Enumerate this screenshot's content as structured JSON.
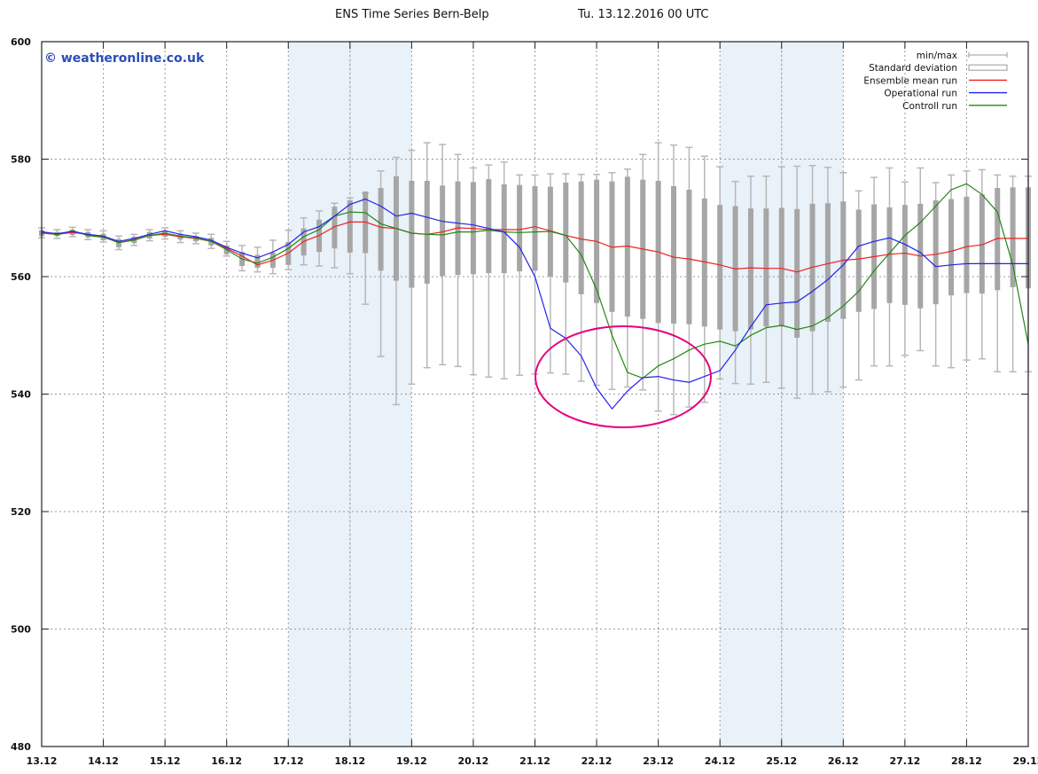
{
  "chart_data": {
    "type": "line",
    "title": "ENS Time Series Bern-Belp",
    "run_label": "Tu. 13.12.2016 00 UTC",
    "copyright": "© weatheronline.co.uk",
    "xlabel": "",
    "ylabel": "",
    "ylim": [
      480,
      600
    ],
    "yticks": [
      "480",
      "500",
      "520",
      "540",
      "560",
      "580",
      "600"
    ],
    "ytick_values": [
      480,
      500,
      520,
      540,
      560,
      580,
      600
    ],
    "xticks": [
      "13.12",
      "14.12",
      "15.12",
      "16.12",
      "17.12",
      "18.12",
      "19.12",
      "20.12",
      "21.12",
      "22.12",
      "23.12",
      "24.12",
      "25.12",
      "26.12",
      "27.12",
      "28.12",
      "29.12"
    ],
    "x_unit": "days since 13.12 00 UTC",
    "xlim": [
      0,
      16
    ],
    "grid": true,
    "legend_position": "top-right",
    "shaded_periods_days": [
      [
        4,
        6
      ],
      [
        11,
        13
      ]
    ],
    "legend": [
      {
        "label": "min/max",
        "kind": "whisker"
      },
      {
        "label": "Standard deviation",
        "kind": "box"
      },
      {
        "label": "Ensemble mean run",
        "kind": "line",
        "color": "#ee2222"
      },
      {
        "label": "Operational run",
        "kind": "line",
        "color": "#2222ee"
      },
      {
        "label": "Controll run",
        "kind": "line",
        "color": "#228811"
      }
    ],
    "colors": {
      "mean": "#ee2222",
      "operational": "#2222ee",
      "control": "#228811",
      "box": "#a6a6a6",
      "whisker": "#b8b8b8",
      "shade": "#e9f1f9",
      "ellipse": "#e6007e",
      "copyright": "#2a4db8"
    },
    "annotation": {
      "type": "ellipse",
      "center_x_days": 22.6,
      "center_y": 542.5
    },
    "x": [
      0,
      0.25,
      0.5,
      0.75,
      1,
      1.25,
      1.5,
      1.75,
      2,
      2.25,
      2.5,
      2.75,
      3,
      3.25,
      3.5,
      3.75,
      4,
      4.25,
      4.5,
      4.75,
      5,
      5.25,
      5.5,
      5.75,
      6,
      6.25,
      6.5,
      6.75,
      7,
      7.25,
      7.5,
      7.75,
      8,
      8.25,
      8.5,
      8.75,
      9,
      9.25,
      9.5,
      9.75,
      10,
      10.25,
      10.5,
      10.75,
      11,
      11.25,
      11.5,
      11.75,
      12,
      12.25,
      12.5,
      12.75,
      13,
      13.25,
      13.5,
      13.75,
      14,
      14.25,
      14.5,
      14.75,
      15,
      15.25,
      15.5,
      15.75,
      16
    ],
    "series": [
      {
        "name": "Ensemble mean run",
        "values": [
          567.4,
          567.2,
          567.5,
          567.2,
          566.8,
          565.8,
          566.3,
          567.0,
          567.2,
          566.8,
          566.5,
          566.0,
          564.8,
          563.5,
          562.0,
          562.8,
          564.0,
          566.0,
          567.0,
          568.5,
          569.3,
          569.3,
          568.4,
          568.2,
          567.4,
          567.2,
          567.6,
          568.3,
          568.2,
          568.0,
          568.0,
          568.0,
          568.5,
          567.8,
          567.0,
          566.4,
          566.0,
          565.0,
          565.2,
          564.7,
          564.2,
          563.3,
          563.0,
          562.5,
          562.0,
          561.3,
          561.5,
          561.4,
          561.4,
          560.8,
          561.6,
          562.2,
          562.8,
          563.0,
          563.4,
          563.8,
          564.0,
          563.5,
          563.8,
          564.3,
          565.1,
          565.4,
          566.5,
          566.5,
          566.5
        ]
      },
      {
        "name": "Operational run",
        "values": [
          567.6,
          567.3,
          567.7,
          567.2,
          566.9,
          566.0,
          566.5,
          567.2,
          567.8,
          567.2,
          566.8,
          566.2,
          565.0,
          564.0,
          563.2,
          564.2,
          565.5,
          567.6,
          568.5,
          570.3,
          572.3,
          573.2,
          572.0,
          570.3,
          570.8,
          570.1,
          569.4,
          569.1,
          568.8,
          568.2,
          567.6,
          565.0,
          560.0,
          551.2,
          549.5,
          546.5,
          541.0,
          537.5,
          540.5,
          542.8,
          543.0,
          542.4,
          542.0,
          543.0,
          544.0,
          547.5,
          551.5,
          555.2,
          555.5,
          555.7,
          557.5,
          559.5,
          562.0,
          565.2,
          566.0,
          566.6,
          565.5,
          564.1,
          561.7,
          562.0,
          562.2,
          562.2,
          562.2,
          562.2,
          562.2
        ]
      },
      {
        "name": "Controll run",
        "values": [
          567.7,
          567.1,
          567.8,
          567.0,
          566.7,
          565.8,
          566.2,
          567.0,
          567.4,
          566.9,
          566.6,
          566.0,
          564.6,
          563.0,
          562.3,
          563.3,
          564.8,
          566.8,
          568.0,
          570.3,
          571.0,
          570.9,
          569.0,
          568.2,
          567.4,
          567.2,
          567.1,
          567.6,
          567.6,
          567.9,
          567.6,
          567.5,
          567.6,
          567.7,
          567.0,
          563.7,
          557.8,
          550.0,
          543.7,
          542.7,
          544.8,
          546.0,
          547.5,
          548.5,
          549.0,
          548.2,
          550.0,
          551.3,
          551.7,
          551.0,
          551.6,
          553.0,
          555.0,
          557.5,
          561.0,
          564.0,
          567.0,
          569.2,
          572.0,
          574.8,
          575.8,
          574.0,
          571.0,
          562.0,
          548.5
        ]
      },
      {
        "name": "Standard deviation (box low)",
        "values": [
          566.9,
          566.9,
          567.1,
          566.7,
          566.2,
          565.0,
          565.7,
          566.5,
          566.8,
          566.3,
          566.0,
          565.3,
          563.8,
          561.8,
          561.5,
          561.5,
          562.0,
          563.6,
          564.2,
          564.8,
          564.1,
          564.0,
          561.0,
          559.3,
          558.1,
          558.8,
          560.1,
          560.3,
          560.4,
          560.6,
          560.6,
          560.9,
          561.0,
          560.0,
          559.0,
          557.0,
          555.5,
          554.0,
          553.2,
          552.8,
          552.1,
          552.0,
          551.9,
          551.5,
          551.0,
          550.7,
          551.0,
          551.5,
          551.5,
          549.6,
          550.7,
          552.3,
          552.8,
          554.0,
          554.5,
          555.5,
          555.2,
          554.6,
          555.3,
          556.8,
          557.2,
          557.1,
          557.7,
          558.2,
          558.0
        ]
      },
      {
        "name": "Standard deviation (box high)",
        "values": [
          567.9,
          567.6,
          568.0,
          567.6,
          567.3,
          566.4,
          566.8,
          567.6,
          567.8,
          567.3,
          566.9,
          566.6,
          565.3,
          564.2,
          563.7,
          564.1,
          565.9,
          568.2,
          569.7,
          571.9,
          573.0,
          574.5,
          575.1,
          577.1,
          576.3,
          576.3,
          575.5,
          576.2,
          576.1,
          576.6,
          575.7,
          575.6,
          575.4,
          575.3,
          576.0,
          576.2,
          576.5,
          576.2,
          577.0,
          576.5,
          576.3,
          575.4,
          574.8,
          573.3,
          572.2,
          572.0,
          571.6,
          571.6,
          571.7,
          571.5,
          572.4,
          572.5,
          572.8,
          571.4,
          572.3,
          571.8,
          572.2,
          572.4,
          573.0,
          573.2,
          573.6,
          574.0,
          575.1,
          575.2,
          575.2
        ]
      },
      {
        "name": "min",
        "values": [
          566.6,
          566.5,
          566.8,
          566.3,
          565.9,
          564.6,
          565.3,
          566.1,
          566.4,
          565.8,
          565.6,
          564.8,
          563.5,
          561.0,
          560.8,
          560.5,
          561.2,
          562.0,
          561.8,
          561.5,
          560.5,
          555.3,
          546.4,
          538.2,
          541.7,
          544.5,
          545.0,
          544.7,
          543.3,
          542.9,
          542.6,
          543.2,
          543.4,
          543.6,
          543.4,
          542.2,
          541.5,
          540.8,
          541.2,
          540.7,
          537.1,
          536.5,
          537.8,
          538.6,
          542.6,
          541.8,
          541.7,
          542.0,
          541.0,
          539.3,
          540.0,
          540.4,
          541.2,
          542.4,
          544.8,
          544.8,
          546.6,
          547.4,
          544.8,
          544.5,
          545.8,
          546.0,
          543.8,
          543.8,
          543.8
        ]
      },
      {
        "name": "max",
        "values": [
          568.3,
          568.0,
          568.4,
          568.0,
          567.8,
          566.9,
          567.2,
          568.0,
          568.3,
          567.8,
          567.4,
          567.2,
          566.0,
          565.3,
          565.0,
          566.2,
          567.9,
          570.0,
          571.2,
          572.5,
          573.4,
          574.2,
          578.0,
          580.3,
          581.5,
          582.8,
          582.5,
          580.8,
          578.5,
          579.0,
          579.5,
          577.3,
          577.3,
          577.5,
          577.5,
          577.4,
          577.4,
          577.7,
          578.3,
          580.8,
          582.8,
          582.4,
          582.0,
          580.5,
          578.7,
          576.2,
          577.1,
          577.1,
          578.7,
          578.8,
          578.9,
          578.6,
          577.7,
          574.6,
          576.9,
          578.5,
          576.1,
          578.5,
          576.0,
          577.3,
          578.0,
          578.2,
          577.3,
          577.1,
          577.1
        ]
      }
    ]
  }
}
